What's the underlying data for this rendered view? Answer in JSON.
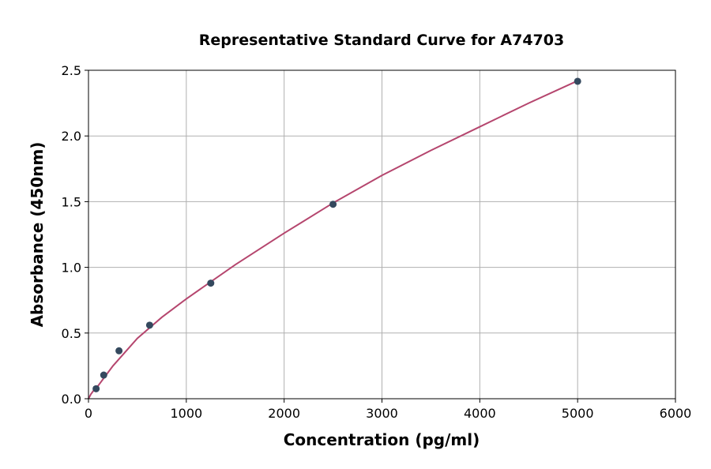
{
  "chart_data": {
    "type": "scatter",
    "title": "Representative Standard Curve for A74703",
    "xlabel": "Concentration (pg/ml)",
    "ylabel": "Absorbance (450nm)",
    "xlim": [
      0,
      6000
    ],
    "ylim": [
      0,
      2.5
    ],
    "xticks": [
      0,
      1000,
      2000,
      3000,
      4000,
      5000,
      6000
    ],
    "yticks": [
      "0.0",
      "0.5",
      "1.0",
      "1.5",
      "2.0",
      "2.5"
    ],
    "grid": true,
    "points": {
      "x": [
        78,
        156,
        312,
        625,
        1250,
        2500,
        5000
      ],
      "y": [
        0.076,
        0.18,
        0.365,
        0.56,
        0.88,
        1.48,
        2.416
      ]
    },
    "fit_curve": {
      "x": [
        0,
        25,
        50,
        100,
        250,
        500,
        750,
        1000,
        1500,
        2000,
        2500,
        3000,
        3500,
        4000,
        4500,
        5000
      ],
      "y": [
        0,
        0.035,
        0.06,
        0.1,
        0.25,
        0.46,
        0.62,
        0.76,
        1.02,
        1.26,
        1.49,
        1.7,
        1.89,
        2.07,
        2.25,
        2.42
      ]
    },
    "colors": {
      "points": "#34495e",
      "curve": "#b5466e"
    }
  }
}
